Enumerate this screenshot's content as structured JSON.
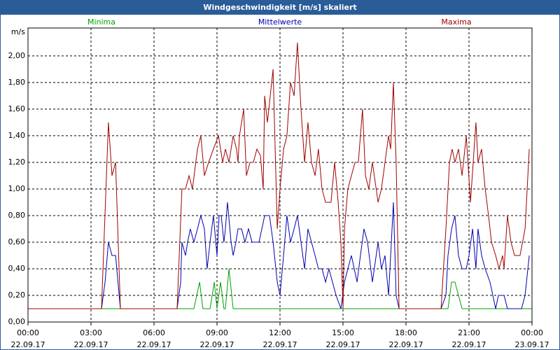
{
  "chart_data": {
    "type": "line",
    "title": "Windgeschwindigkeit [m/s] skaliert",
    "y_unit": "m/s",
    "xlim": [
      0,
      24
    ],
    "xticks": [
      {
        "value": 0,
        "label": "00:00 22.09.17"
      },
      {
        "value": 3,
        "label": "03:00 22.09.17"
      },
      {
        "value": 6,
        "label": "06:00 22.09.17"
      },
      {
        "value": 9,
        "label": "09:00 22.09.17"
      },
      {
        "value": 12,
        "label": "12:00 22.09.17"
      },
      {
        "value": 15,
        "label": "15:00 22.09.17"
      },
      {
        "value": 18,
        "label": "18:00 22.09.17"
      },
      {
        "value": 21,
        "label": "21:00 22.09.17"
      },
      {
        "value": 24,
        "label": "00:00 23.09.17"
      }
    ],
    "ylim": [
      0,
      2.21
    ],
    "yticks": [
      {
        "value": 0,
        "label": "0,00"
      },
      {
        "value": 0.2,
        "label": "0,20"
      },
      {
        "value": 0.4,
        "label": "0,40"
      },
      {
        "value": 0.6,
        "label": "0,60"
      },
      {
        "value": 0.8,
        "label": "0,80"
      },
      {
        "value": 1.0,
        "label": "1,00"
      },
      {
        "value": 1.2,
        "label": "1,20"
      },
      {
        "value": 1.4,
        "label": "1,40"
      },
      {
        "value": 1.6,
        "label": "1,60"
      },
      {
        "value": 1.8,
        "label": "1,80"
      },
      {
        "value": 2.0,
        "label": "2,00"
      }
    ],
    "grid": true,
    "series": [
      {
        "name": "Minima",
        "color": "#00a000",
        "x": [
          0,
          7.9,
          8.17,
          8.33,
          8.67,
          8.87,
          9.0,
          9.17,
          9.33,
          9.4,
          9.57,
          9.77,
          20.0,
          20.17,
          20.33,
          20.67,
          24
        ],
        "values": [
          0.1,
          0.1,
          0.3,
          0.1,
          0.1,
          0.3,
          0.1,
          0.3,
          0.1,
          0.1,
          0.4,
          0.1,
          0.1,
          0.3,
          0.3,
          0.1,
          0.1
        ]
      },
      {
        "name": "Mittelwerte",
        "color": "#0000b0",
        "x": [
          0,
          3.5,
          3.67,
          3.83,
          4.0,
          4.17,
          4.4,
          7.1,
          7.27,
          7.33,
          7.5,
          7.6,
          7.73,
          7.9,
          8.07,
          8.23,
          8.4,
          8.53,
          8.67,
          8.83,
          9.0,
          9.1,
          9.2,
          9.33,
          9.4,
          9.5,
          9.67,
          9.77,
          9.9,
          10.0,
          10.17,
          10.33,
          10.5,
          10.67,
          10.83,
          11.0,
          11.27,
          11.5,
          11.67,
          11.87,
          12.0,
          12.17,
          12.33,
          12.5,
          12.67,
          12.83,
          13.0,
          13.17,
          13.33,
          13.5,
          13.67,
          13.83,
          14.0,
          14.17,
          14.33,
          14.5,
          14.67,
          14.9,
          15.07,
          15.23,
          15.4,
          15.67,
          15.83,
          16.0,
          16.17,
          16.4,
          16.67,
          16.83,
          17.0,
          17.17,
          17.27,
          17.4,
          17.53,
          17.67,
          19.67,
          19.9,
          20.0,
          20.17,
          20.33,
          20.5,
          20.67,
          20.87,
          21.0,
          21.17,
          21.33,
          21.43,
          21.6,
          21.77,
          22.0,
          22.27,
          22.4,
          22.67,
          22.83,
          23.5,
          23.67,
          23.87
        ],
        "values": [
          0.1,
          0.1,
          0.3,
          0.6,
          0.5,
          0.5,
          0.1,
          0.1,
          0.3,
          0.6,
          0.5,
          0.6,
          0.7,
          0.6,
          0.7,
          0.8,
          0.7,
          0.4,
          0.6,
          0.8,
          0.5,
          0.8,
          0.8,
          0.6,
          0.7,
          0.9,
          0.6,
          0.5,
          0.6,
          0.7,
          0.7,
          0.6,
          0.7,
          0.6,
          0.6,
          0.6,
          0.8,
          0.8,
          0.6,
          0.3,
          0.2,
          0.5,
          0.8,
          0.6,
          0.7,
          0.8,
          0.6,
          0.4,
          0.7,
          0.6,
          0.5,
          0.4,
          0.4,
          0.3,
          0.4,
          0.3,
          0.2,
          0.1,
          0.3,
          0.4,
          0.5,
          0.3,
          0.5,
          0.7,
          0.6,
          0.3,
          0.6,
          0.4,
          0.5,
          0.2,
          0.5,
          0.9,
          0.2,
          0.1,
          0.1,
          0.2,
          0.5,
          0.7,
          0.8,
          0.5,
          0.4,
          0.4,
          0.5,
          0.7,
          0.4,
          0.7,
          0.5,
          0.4,
          0.3,
          0.1,
          0.2,
          0.2,
          0.1,
          0.1,
          0.2,
          0.5
        ]
      },
      {
        "name": "Maxima",
        "color": "#a00000",
        "x": [
          0,
          3.5,
          3.83,
          4.0,
          4.17,
          4.4,
          7.1,
          7.33,
          7.5,
          7.67,
          7.83,
          8.07,
          8.23,
          8.4,
          8.6,
          8.83,
          9.07,
          9.27,
          9.4,
          9.57,
          9.77,
          9.93,
          10.0,
          10.07,
          10.17,
          10.27,
          10.4,
          10.57,
          10.73,
          10.9,
          11.07,
          11.2,
          11.27,
          11.4,
          11.67,
          11.87,
          12.0,
          12.17,
          12.33,
          12.5,
          12.67,
          12.83,
          13.0,
          13.17,
          13.33,
          13.5,
          13.67,
          13.83,
          14.0,
          14.17,
          14.43,
          14.6,
          14.77,
          14.9,
          15.0,
          15.07,
          15.23,
          15.4,
          15.57,
          15.73,
          15.93,
          16.07,
          16.23,
          16.4,
          16.67,
          16.83,
          17.0,
          17.17,
          17.27,
          17.4,
          17.53,
          17.67,
          19.67,
          19.9,
          20.07,
          20.2,
          20.33,
          20.5,
          20.67,
          20.87,
          21.07,
          21.33,
          21.43,
          21.6,
          21.77,
          21.93,
          22.07,
          22.27,
          22.43,
          22.6,
          22.67,
          22.83,
          23.0,
          23.17,
          23.43,
          23.67,
          23.87
        ],
        "values": [
          0.1,
          0.1,
          1.5,
          1.1,
          1.2,
          0.1,
          0.1,
          1.0,
          1.0,
          1.1,
          1.0,
          1.3,
          1.4,
          1.1,
          1.2,
          1.3,
          1.4,
          1.2,
          1.3,
          1.2,
          1.4,
          1.3,
          1.2,
          1.4,
          1.5,
          1.6,
          1.1,
          1.2,
          1.2,
          1.3,
          1.25,
          1.0,
          1.7,
          1.5,
          1.9,
          0.7,
          1.0,
          1.3,
          1.4,
          1.8,
          1.7,
          2.1,
          1.6,
          1.2,
          1.5,
          1.2,
          1.1,
          1.3,
          1.0,
          0.9,
          0.9,
          1.2,
          0.9,
          0.6,
          0.1,
          0.7,
          1.0,
          1.1,
          1.2,
          1.2,
          1.6,
          1.1,
          1.0,
          1.2,
          0.9,
          1.0,
          1.2,
          1.4,
          1.3,
          1.8,
          1.2,
          0.1,
          0.1,
          0.7,
          1.2,
          1.3,
          1.2,
          1.3,
          1.1,
          1.4,
          0.9,
          1.5,
          1.2,
          1.3,
          1.0,
          0.8,
          0.6,
          0.5,
          0.4,
          0.5,
          0.4,
          0.8,
          0.6,
          0.5,
          0.5,
          0.7,
          1.3
        ]
      }
    ]
  }
}
